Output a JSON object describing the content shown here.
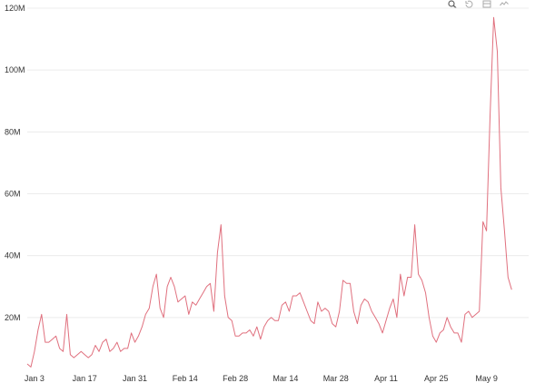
{
  "toolbar": {
    "icons": [
      "zoom-icon",
      "zoom-reset-icon",
      "save-image-icon",
      "restore-icon"
    ]
  },
  "chart_data": {
    "type": "line",
    "title": "",
    "xlabel": "",
    "ylabel": "",
    "ylim": [
      0,
      120000000
    ],
    "y_ticks": [
      {
        "value": 20000000,
        "label": "20M"
      },
      {
        "value": 40000000,
        "label": "40M"
      },
      {
        "value": 60000000,
        "label": "60M"
      },
      {
        "value": 80000000,
        "label": "80M"
      },
      {
        "value": 100000000,
        "label": "100M"
      },
      {
        "value": 120000000,
        "label": "120M"
      }
    ],
    "x_ticks": [
      "Jan 3",
      "Jan 17",
      "Jan 31",
      "Feb 14",
      "Feb 28",
      "Mar 14",
      "Mar 28",
      "Apr 11",
      "Apr 25",
      "May 9"
    ],
    "x_range": [
      "Jan 1",
      "May 16"
    ],
    "grid": true,
    "colors": {
      "line": "#e0707e",
      "grid": "#ececec"
    },
    "series": [
      {
        "values": [
          5,
          4,
          9,
          16,
          21,
          12,
          12,
          13,
          14,
          10,
          9,
          21,
          8,
          7,
          8,
          9,
          8,
          7,
          8,
          11,
          9,
          12,
          13,
          9,
          10,
          12,
          9,
          10,
          10,
          15,
          12,
          14,
          17,
          21,
          23,
          30,
          34,
          23,
          20,
          30,
          33,
          30,
          25,
          26,
          27,
          21,
          25,
          24,
          26,
          28,
          30,
          31,
          22,
          41,
          50,
          27,
          20,
          19,
          14,
          14,
          15,
          15,
          16,
          14,
          17,
          13,
          17,
          19,
          20,
          19,
          19,
          24,
          25,
          22,
          27,
          27,
          28,
          25,
          22,
          19,
          18,
          25,
          22,
          23,
          22,
          18,
          17,
          22,
          32,
          31,
          31,
          22,
          18,
          24,
          26,
          25,
          22,
          20,
          18,
          15,
          19,
          23,
          26,
          20,
          34,
          27,
          33,
          33,
          50,
          34,
          32,
          28,
          20,
          14,
          12,
          15,
          16,
          20,
          17,
          15,
          15,
          12,
          21,
          22,
          20,
          21,
          22,
          51,
          48,
          85,
          117,
          106,
          62,
          48,
          33,
          29
        ]
      }
    ]
  }
}
